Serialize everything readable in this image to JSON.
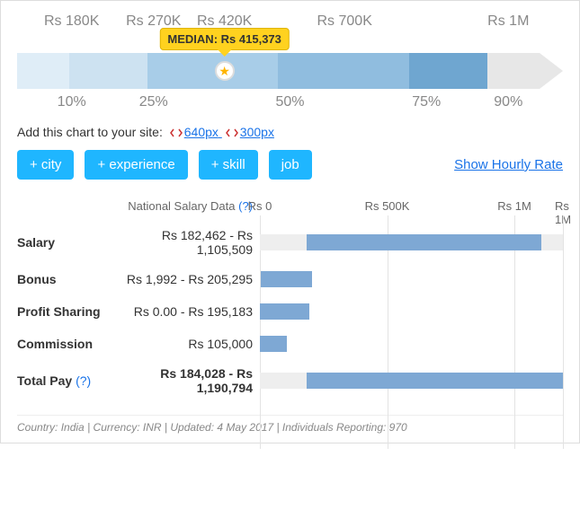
{
  "percentile_chart": {
    "segments": [
      {
        "width_pct": 10,
        "color": "#dfedf7"
      },
      {
        "width_pct": 15,
        "color": "#cde2f1"
      },
      {
        "width_pct": 25,
        "color": "#a8cde8"
      },
      {
        "width_pct": 25,
        "color": "#90bddf"
      },
      {
        "width_pct": 15,
        "color": "#6fa6d0"
      },
      {
        "width_pct": 10,
        "color": "#e7e7e7"
      }
    ],
    "arrow_head_color": "#e7e7e7",
    "top_labels": [
      {
        "pos_pct": 10,
        "text": "Rs 180K"
      },
      {
        "pos_pct": 25,
        "text": "Rs 270K"
      },
      {
        "pos_pct": 38,
        "text": "Rs 420K"
      },
      {
        "pos_pct": 60,
        "text": "Rs 700K"
      },
      {
        "pos_pct": 90,
        "text": "Rs 1M"
      }
    ],
    "bottom_labels": [
      {
        "pos_pct": 10,
        "text": "10%"
      },
      {
        "pos_pct": 25,
        "text": "25%"
      },
      {
        "pos_pct": 50,
        "text": "50%"
      },
      {
        "pos_pct": 75,
        "text": "75%"
      },
      {
        "pos_pct": 90,
        "text": "90%"
      }
    ],
    "median": {
      "label_prefix": "MEDIAN:",
      "value": "Rs 415,373",
      "pos_pct": 38
    }
  },
  "embed": {
    "prefix": "Add this chart to your site:",
    "opt1": "640px",
    "opt2": "300px"
  },
  "filters": {
    "city": "+ city",
    "experience": "+ experience",
    "skill": "+ skill",
    "job": "job"
  },
  "hourly_link": "Show Hourly Rate",
  "salary_table": {
    "header": "National Salary Data",
    "help_glyph": "(?)",
    "axis_max": 1190794,
    "axis_labels": [
      {
        "value": 0,
        "text": "Rs 0"
      },
      {
        "value": 500000,
        "text": "Rs 500K"
      },
      {
        "value": 1000000,
        "text": "Rs 1M"
      },
      {
        "value": 1190794,
        "text": "Rs 1M"
      }
    ],
    "bar_color": "#7ea8d4",
    "bg_bar_color": "#eeeeee",
    "rows": [
      {
        "key": "salary",
        "label": "Salary",
        "range_text": "Rs 182,462 - Rs 1,105,509",
        "low": 182462,
        "high": 1105509,
        "bg_low": 0,
        "bg_high": 1190794,
        "bold": false
      },
      {
        "key": "bonus",
        "label": "Bonus",
        "range_text": "Rs 1,992 - Rs 205,295",
        "low": 1992,
        "high": 205295,
        "bold": false
      },
      {
        "key": "profit_sharing",
        "label": "Profit Sharing",
        "range_text": "Rs 0.00 - Rs 195,183",
        "low": 0,
        "high": 195183,
        "bold": false
      },
      {
        "key": "commission",
        "label": "Commission",
        "range_text": "Rs 105,000",
        "low": 0,
        "high": 105000,
        "bold": false
      },
      {
        "key": "total_pay",
        "label": "Total Pay",
        "range_text": "Rs 184,028 - Rs 1,190,794",
        "low": 184028,
        "high": 1190794,
        "bg_low": 0,
        "bg_high": 1190794,
        "bold": true,
        "help": true
      }
    ]
  },
  "footer": {
    "country_label": "Country:",
    "country": "India",
    "currency_label": "Currency:",
    "currency": "INR",
    "updated_label": "Updated:",
    "updated": "4 May 2017",
    "reporting_label": "Individuals Reporting:",
    "reporting": "970"
  }
}
